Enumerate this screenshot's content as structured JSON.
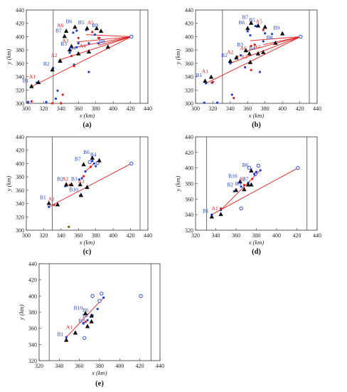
{
  "colors": {
    "blue": "#1f3fd1",
    "red": "#e02020",
    "black": "#111111",
    "axis": "#333333",
    "olive": "#8a6a10"
  },
  "chart_data": [
    {
      "type": "scatter",
      "caption": "(a)",
      "xlabel": "x (km)",
      "ylabel": "y (km)",
      "xlim": [
        300,
        440
      ],
      "ylim": [
        300,
        440
      ],
      "xticks": [
        300,
        320,
        340,
        360,
        380,
        400,
        420,
        440
      ],
      "yticks": [
        300,
        320,
        340,
        360,
        380,
        400,
        420,
        440
      ],
      "vlines": [
        331,
        431
      ],
      "open_markers": [
        [
          421,
          400
        ]
      ],
      "lines": [
        [
          [
            306,
            325
          ],
          [
            421,
            400
          ]
        ],
        [
          [
            356,
            384
          ],
          [
            421,
            400
          ]
        ],
        [
          [
            358,
            392
          ],
          [
            421,
            400
          ]
        ],
        [
          [
            369,
            403
          ],
          [
            421,
            400
          ]
        ],
        [
          [
            383,
            387
          ],
          [
            421,
            400
          ]
        ],
        [
          [
            338,
            365
          ],
          [
            421,
            400
          ]
        ]
      ],
      "blue_points": [
        [
          306,
          325
        ],
        [
          312,
          331
        ],
        [
          331,
          353
        ],
        [
          338,
          363
        ],
        [
          350,
          376
        ],
        [
          358,
          384
        ],
        [
          360,
          390
        ],
        [
          354,
          406
        ],
        [
          358,
          409
        ],
        [
          369,
          410
        ],
        [
          379,
          403
        ],
        [
          383,
          390
        ],
        [
          372,
          390
        ],
        [
          372,
          347
        ],
        [
          336,
          319
        ],
        [
          334,
          307
        ],
        [
          302,
          302
        ],
        [
          323,
          302
        ],
        [
          355,
          358
        ]
      ],
      "red_points": [
        [
          306,
          303
        ],
        [
          314,
          331
        ],
        [
          339,
          365
        ],
        [
          352,
          371
        ],
        [
          360,
          398
        ],
        [
          376,
          407
        ],
        [
          384,
          398
        ],
        [
          383,
          398
        ],
        [
          342,
          313
        ],
        [
          340,
          300
        ],
        [
          330,
          300
        ],
        [
          355,
          356
        ]
      ],
      "markers": [
        {
          "label": "B1",
          "color": "blue",
          "x": 306,
          "y": 325
        },
        {
          "label": "A1",
          "color": "red",
          "x": 314,
          "y": 331
        },
        {
          "label": "B2",
          "color": "blue",
          "x": 330,
          "y": 350
        },
        {
          "label": "A2",
          "color": "red",
          "x": 339,
          "y": 363
        },
        {
          "label": "B3",
          "color": "blue",
          "x": 350,
          "y": 380
        },
        {
          "label": "A3",
          "color": "red",
          "x": 352,
          "y": 385
        },
        {
          "label": "B4",
          "color": "blue",
          "x": 360,
          "y": 374
        },
        {
          "label": "A4",
          "color": "red",
          "x": 372,
          "y": 377
        },
        {
          "label": "B5",
          "color": "blue",
          "x": 370,
          "y": 412
        },
        {
          "label": "A5",
          "color": "red",
          "x": 381,
          "y": 412
        },
        {
          "label": "B6",
          "color": "blue",
          "x": 356,
          "y": 414
        },
        {
          "label": "A6",
          "color": "red",
          "x": 346,
          "y": 408
        },
        {
          "label": "B7",
          "color": "blue",
          "x": 344,
          "y": 400
        },
        {
          "label": "B8",
          "color": "blue",
          "x": 394,
          "y": 384
        },
        {
          "label": "B9",
          "color": "blue",
          "x": 386,
          "y": 408
        }
      ]
    },
    {
      "type": "scatter",
      "caption": "(b)",
      "xlabel": "x (km)",
      "ylabel": "y (km)",
      "xlim": [
        300,
        440
      ],
      "ylim": [
        300,
        440
      ],
      "xticks": [
        300,
        320,
        340,
        360,
        380,
        400,
        420,
        440
      ],
      "yticks": [
        300,
        320,
        340,
        360,
        380,
        400,
        420,
        440
      ],
      "vlines": [
        331,
        431
      ],
      "open_markers": [
        [
          421,
          400
        ]
      ],
      "lines": [
        [
          [
            312,
            330
          ],
          [
            421,
            400
          ]
        ],
        [
          [
            340,
            360
          ],
          [
            421,
            400
          ]
        ],
        [
          [
            358,
            378
          ],
          [
            421,
            400
          ]
        ],
        [
          [
            363,
            394
          ],
          [
            421,
            400
          ]
        ],
        [
          [
            378,
            388
          ],
          [
            421,
            400
          ]
        ]
      ],
      "blue_points": [
        [
          312,
          330
        ],
        [
          319,
          331
        ],
        [
          340,
          360
        ],
        [
          352,
          372
        ],
        [
          358,
          378
        ],
        [
          360,
          408
        ],
        [
          363,
          402
        ],
        [
          369,
          416
        ],
        [
          380,
          405
        ],
        [
          388,
          404
        ],
        [
          378,
          393
        ],
        [
          374,
          347
        ],
        [
          342,
          313
        ],
        [
          310,
          301
        ],
        [
          325,
          301
        ],
        [
          357,
          354
        ]
      ],
      "red_points": [
        [
          320,
          332
        ],
        [
          348,
          370
        ],
        [
          364,
          386
        ],
        [
          378,
          410
        ],
        [
          368,
          388
        ],
        [
          344,
          308
        ],
        [
          364,
          350
        ]
      ],
      "markers": [
        {
          "label": "B1",
          "color": "blue",
          "x": 311,
          "y": 333
        },
        {
          "label": "A1",
          "color": "red",
          "x": 318,
          "y": 339
        },
        {
          "label": "B2",
          "color": "blue",
          "x": 340,
          "y": 363
        },
        {
          "label": "A2",
          "color": "red",
          "x": 347,
          "y": 368
        },
        {
          "label": "B3",
          "color": "blue",
          "x": 358,
          "y": 379
        },
        {
          "label": "A6",
          "color": "red",
          "x": 362,
          "y": 374
        },
        {
          "label": "B4",
          "color": "blue",
          "x": 372,
          "y": 374
        },
        {
          "label": "A4",
          "color": "red",
          "x": 378,
          "y": 376
        },
        {
          "label": "A3",
          "color": "red",
          "x": 363,
          "y": 361
        },
        {
          "label": "B5",
          "color": "blue",
          "x": 372,
          "y": 416
        },
        {
          "label": "A5",
          "color": "red",
          "x": 380,
          "y": 414
        },
        {
          "label": "B6",
          "color": "blue",
          "x": 360,
          "y": 412
        },
        {
          "label": "B7",
          "color": "blue",
          "x": 364,
          "y": 420
        },
        {
          "label": "B8",
          "color": "blue",
          "x": 392,
          "y": 390
        },
        {
          "label": "B9",
          "color": "blue",
          "x": 400,
          "y": 404
        }
      ]
    },
    {
      "type": "scatter",
      "caption": "(c)",
      "xlabel": "x (km)",
      "ylabel": "y (km)",
      "xlim": [
        300,
        440
      ],
      "ylim": [
        300,
        440
      ],
      "xticks": [
        300,
        320,
        340,
        360,
        380,
        400,
        420,
        440
      ],
      "yticks": [
        300,
        320,
        340,
        360,
        380,
        400,
        420,
        440
      ],
      "vlines": [
        330,
        431
      ],
      "open_markers": [
        [
          421,
          400
        ],
        [
          373,
          402
        ],
        [
          382,
          401
        ]
      ],
      "lines": [
        [
          [
            326,
            335
          ],
          [
            421,
            400
          ]
        ],
        [
          [
            368,
            388
          ],
          [
            378,
            400
          ]
        ]
      ],
      "blue_points": [
        [
          326,
          335
        ],
        [
          345,
          366
        ],
        [
          361,
          376
        ],
        [
          364,
          378
        ],
        [
          368,
          388
        ],
        [
          376,
          404
        ],
        [
          378,
          400
        ],
        [
          380,
          396
        ],
        [
          362,
          352
        ]
      ],
      "red_points": [
        [
          332,
          338
        ],
        [
          350,
          368
        ],
        [
          366,
          381
        ],
        [
          374,
          395
        ]
      ],
      "other_points": [
        [
          349,
          305
        ]
      ],
      "markers": [
        {
          "label": "B1",
          "color": "blue",
          "x": 326,
          "y": 340
        },
        {
          "label": "A1",
          "color": "red",
          "x": 336,
          "y": 338
        },
        {
          "label": "B2",
          "color": "blue",
          "x": 346,
          "y": 368
        },
        {
          "label": "A2",
          "color": "red",
          "x": 352,
          "y": 368
        },
        {
          "label": "B3",
          "color": "blue",
          "x": 362,
          "y": 368
        },
        {
          "label": "A3",
          "color": "red",
          "x": 370,
          "y": 364
        },
        {
          "label": "B10",
          "color": "blue",
          "x": 363,
          "y": 352
        },
        {
          "label": "B7",
          "color": "blue",
          "x": 366,
          "y": 398
        },
        {
          "label": "B6",
          "color": "blue",
          "x": 376,
          "y": 408
        },
        {
          "label": "B4",
          "color": "blue",
          "x": 384,
          "y": 404
        }
      ]
    },
    {
      "type": "scatter",
      "caption": "(d)",
      "xlabel": "x (km)",
      "ylabel": "y (km)",
      "xlim": [
        320,
        440
      ],
      "ylim": [
        320,
        440
      ],
      "xticks": [
        320,
        340,
        360,
        380,
        400,
        420,
        440
      ],
      "yticks": [
        320,
        340,
        360,
        380,
        400,
        420,
        440
      ],
      "vlines": [
        331,
        430
      ],
      "open_markers": [
        [
          421,
          400
        ],
        [
          373,
          400
        ],
        [
          382,
          403
        ],
        [
          379,
          392
        ],
        [
          365,
          348
        ]
      ],
      "lines": [
        [
          [
            336,
            340
          ],
          [
            421,
            400
          ]
        ],
        [
          [
            345,
            346
          ],
          [
            384,
            397
          ]
        ]
      ],
      "blue_points": [
        [
          336,
          340
        ],
        [
          345,
          346
        ],
        [
          358,
          370
        ],
        [
          365,
          376
        ],
        [
          372,
          381
        ],
        [
          378,
          392
        ],
        [
          384,
          397
        ],
        [
          380,
          395
        ]
      ],
      "red_points": [
        [
          345,
          348
        ],
        [
          368,
          378
        ],
        [
          376,
          386
        ]
      ],
      "markers": [
        {
          "label": "B1",
          "color": "blue",
          "x": 336,
          "y": 337
        },
        {
          "label": "A1",
          "color": "red",
          "x": 345,
          "y": 340
        },
        {
          "label": "B2",
          "color": "blue",
          "x": 360,
          "y": 371
        },
        {
          "label": "B10",
          "color": "blue",
          "x": 364,
          "y": 382
        },
        {
          "label": "A2",
          "color": "red",
          "x": 372,
          "y": 378
        },
        {
          "label": "B3",
          "color": "blue",
          "x": 368,
          "y": 372
        },
        {
          "label": "B7",
          "color": "blue",
          "x": 375,
          "y": 378
        },
        {
          "label": "B6",
          "color": "blue",
          "x": 375,
          "y": 396
        }
      ]
    },
    {
      "type": "scatter",
      "caption": "(e)",
      "xlabel": "x (km)",
      "ylabel": "y (km)",
      "xlim": [
        320,
        440
      ],
      "ylim": [
        320,
        440
      ],
      "xticks": [
        320,
        340,
        360,
        380,
        400,
        420,
        440
      ],
      "yticks": [
        320,
        340,
        360,
        380,
        400,
        420,
        440
      ],
      "vlines": [
        330,
        431
      ],
      "open_markers": [
        [
          421,
          400
        ],
        [
          373,
          400
        ],
        [
          382,
          403
        ],
        [
          380,
          394
        ],
        [
          365,
          348
        ]
      ],
      "lines": [
        [
          [
            347,
            349
          ],
          [
            384,
            398
          ]
        ]
      ],
      "blue_points": [
        [
          347,
          349
        ],
        [
          364,
          366
        ],
        [
          368,
          370
        ],
        [
          373,
          376
        ],
        [
          378,
          384
        ],
        [
          384,
          398
        ]
      ],
      "red_points": [
        [
          356,
          355
        ],
        [
          366,
          368
        ]
      ],
      "markers": [
        {
          "label": "B1",
          "color": "blue",
          "x": 347,
          "y": 345
        },
        {
          "label": "A1",
          "color": "red",
          "x": 356,
          "y": 354
        },
        {
          "label": "B2",
          "color": "blue",
          "x": 368,
          "y": 362
        },
        {
          "label": "B7",
          "color": "blue",
          "x": 372,
          "y": 368
        },
        {
          "label": "B6",
          "color": "blue",
          "x": 372,
          "y": 375
        },
        {
          "label": "B10",
          "color": "blue",
          "x": 366,
          "y": 378
        }
      ]
    }
  ]
}
